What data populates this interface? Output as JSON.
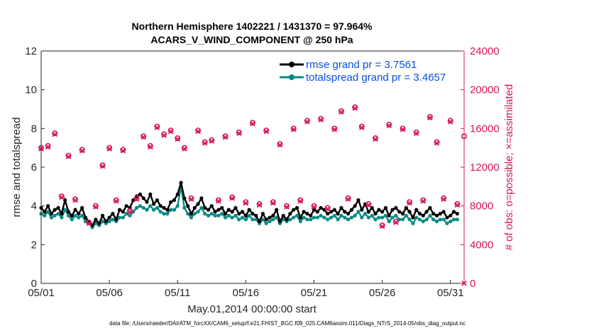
{
  "chart_data": {
    "type": "line",
    "title": "Northern Hemisphere 1402221 / 1431370 = 97.964%",
    "subtitle": "ACARS_V_WIND_COMPONENT @ 250 hPa",
    "xlabel": "May.01,2014 00:00:00 start",
    "ylabel": "rmse and totalspread",
    "ylabel_right": "# of obs: o=possible; ×=assimilated",
    "footnote": "data file: /Users/raeder/DAI/ATM_forcXX/CAM6_setup/f.e21.FHIST_BGC.f09_025.CAM6assim.011/Diags_NTrS_2014-05/obs_diag_output.nc",
    "x_ticks": [
      "05/01",
      "05/06",
      "05/11",
      "05/16",
      "05/21",
      "05/26",
      "05/31"
    ],
    "x_tick_days": [
      0,
      5,
      10,
      15,
      20,
      25,
      30
    ],
    "xlim": [
      0,
      31
    ],
    "ylim": [
      0,
      12
    ],
    "y_ticks": [
      "0",
      "2",
      "4",
      "6",
      "8",
      "10",
      "12"
    ],
    "ylim_right": [
      0,
      24000
    ],
    "y_ticks_right": [
      "0",
      "4000",
      "8000",
      "12000",
      "16000",
      "20000",
      "24000"
    ],
    "legend_position": "top-right",
    "colors": {
      "rmse": "#000000",
      "spread": "#0a8a86",
      "obs": "#d6145a",
      "legend_text": "#0a4ee6"
    },
    "series": [
      {
        "name": "rmse",
        "label": "rmse grand pr = 3.7561",
        "x": [
          0.0,
          0.25,
          0.5,
          0.75,
          1.0,
          1.25,
          1.5,
          1.75,
          2.0,
          2.25,
          2.5,
          2.75,
          3.0,
          3.25,
          3.5,
          3.75,
          4.0,
          4.25,
          4.5,
          4.75,
          5.0,
          5.25,
          5.5,
          5.75,
          6.0,
          6.25,
          6.5,
          6.75,
          7.0,
          7.25,
          7.5,
          7.75,
          8.0,
          8.25,
          8.5,
          8.75,
          9.0,
          9.25,
          9.5,
          9.75,
          10.0,
          10.25,
          10.5,
          10.75,
          11.0,
          11.25,
          11.5,
          11.75,
          12.0,
          12.25,
          12.5,
          12.75,
          13.0,
          13.25,
          13.5,
          13.75,
          14.0,
          14.25,
          14.5,
          14.75,
          15.0,
          15.25,
          15.5,
          15.75,
          16.0,
          16.25,
          16.5,
          16.75,
          17.0,
          17.25,
          17.5,
          17.75,
          18.0,
          18.25,
          18.5,
          18.75,
          19.0,
          19.25,
          19.5,
          19.75,
          20.0,
          20.25,
          20.5,
          20.75,
          21.0,
          21.25,
          21.5,
          21.75,
          22.0,
          22.25,
          22.5,
          22.75,
          23.0,
          23.25,
          23.5,
          23.75,
          24.0,
          24.25,
          24.5,
          24.75,
          25.0,
          25.25,
          25.5,
          25.75,
          26.0,
          26.25,
          26.5,
          26.75,
          27.0,
          27.25,
          27.5,
          27.75,
          28.0,
          28.25,
          28.5,
          28.75,
          29.0,
          29.25,
          29.5,
          29.75,
          30.0,
          30.25,
          30.5
        ],
        "values": [
          3.9,
          3.7,
          4.0,
          3.6,
          3.8,
          3.9,
          3.6,
          4.3,
          3.7,
          3.5,
          3.8,
          3.6,
          3.9,
          3.4,
          3.2,
          3.0,
          3.3,
          3.1,
          3.5,
          3.2,
          3.4,
          3.6,
          3.3,
          3.8,
          3.7,
          4.0,
          3.9,
          4.3,
          4.5,
          4.6,
          4.4,
          4.2,
          4.6,
          4.1,
          4.3,
          4.0,
          3.9,
          3.8,
          4.2,
          4.3,
          4.6,
          5.2,
          4.4,
          4.0,
          3.6,
          3.9,
          4.1,
          4.4,
          3.9,
          3.8,
          4.0,
          3.7,
          3.8,
          3.9,
          3.6,
          3.8,
          3.7,
          3.9,
          3.6,
          3.7,
          3.5,
          3.8,
          3.6,
          3.5,
          3.2,
          3.6,
          3.3,
          3.4,
          3.5,
          3.8,
          3.2,
          3.5,
          3.3,
          3.6,
          3.8,
          3.9,
          3.4,
          3.7,
          3.6,
          3.5,
          3.8,
          3.7,
          3.9,
          3.8,
          3.6,
          3.7,
          3.8,
          3.6,
          3.9,
          3.7,
          3.6,
          3.8,
          4.0,
          4.3,
          3.8,
          4.1,
          3.7,
          3.9,
          3.6,
          3.8,
          3.7,
          3.9,
          3.5,
          3.8,
          3.9,
          3.7,
          3.6,
          3.9,
          3.7,
          3.4,
          3.8,
          3.6,
          3.5,
          3.7,
          3.9,
          3.6,
          3.5,
          3.6,
          3.7,
          3.4,
          3.5,
          3.7,
          3.6
        ],
        "note": "values approximated from chart, 6-hourly"
      },
      {
        "name": "totalspread",
        "label": "totalspread grand pr = 3.4657",
        "values": [
          3.6,
          3.5,
          3.7,
          3.4,
          3.5,
          3.6,
          3.4,
          3.8,
          3.5,
          3.3,
          3.5,
          3.4,
          3.5,
          3.2,
          3.1,
          2.9,
          3.1,
          3.0,
          3.2,
          3.1,
          3.2,
          3.3,
          3.2,
          3.4,
          3.4,
          3.6,
          3.5,
          3.7,
          3.9,
          4.0,
          3.9,
          3.8,
          4.0,
          3.8,
          3.9,
          3.7,
          3.6,
          3.6,
          3.8,
          3.8,
          4.0,
          5.0,
          3.9,
          3.6,
          3.4,
          3.6,
          3.7,
          3.9,
          3.6,
          3.5,
          3.6,
          3.5,
          3.5,
          3.6,
          3.4,
          3.5,
          3.4,
          3.5,
          3.3,
          3.4,
          3.3,
          3.5,
          3.3,
          3.3,
          3.1,
          3.3,
          3.1,
          3.2,
          3.3,
          3.4,
          3.1,
          3.3,
          3.2,
          3.3,
          3.4,
          3.5,
          3.2,
          3.4,
          3.3,
          3.3,
          3.4,
          3.4,
          3.5,
          3.4,
          3.3,
          3.4,
          3.5,
          3.3,
          3.5,
          3.4,
          3.3,
          3.4,
          3.5,
          3.7,
          3.4,
          3.6,
          3.4,
          3.5,
          3.3,
          3.4,
          3.4,
          3.5,
          3.2,
          3.4,
          3.5,
          3.3,
          3.3,
          3.5,
          3.3,
          3.1,
          3.4,
          3.3,
          3.2,
          3.3,
          3.5,
          3.3,
          3.2,
          3.3,
          3.3,
          3.1,
          3.2,
          3.3,
          3.3
        ],
        "note": "values approximated from chart, 6-hourly"
      },
      {
        "name": "obs_possible",
        "axis": "right",
        "marker": "circle",
        "x": [
          0,
          0.5,
          1,
          1.5,
          2,
          2.5,
          3,
          3.5,
          4,
          4.5,
          5,
          5.5,
          6,
          6.5,
          7,
          7.5,
          8,
          8.5,
          9,
          9.5,
          10,
          10.5,
          11,
          11.5,
          12,
          12.5,
          13,
          13.5,
          14,
          14.5,
          15,
          15.5,
          16,
          16.5,
          17,
          17.5,
          18,
          18.5,
          19,
          19.5,
          20,
          20.5,
          21,
          21.5,
          22,
          22.5,
          23,
          23.5,
          24,
          24.5,
          25,
          25.5,
          26,
          26.5,
          27,
          27.5,
          28,
          28.5,
          29,
          29.5,
          30,
          30.5,
          31
        ],
        "values": [
          14000,
          14200,
          15500,
          9000,
          13200,
          8700,
          13800,
          6300,
          8000,
          12200,
          14000,
          8600,
          13800,
          7500,
          8800,
          15200,
          14200,
          16200,
          15400,
          15800,
          15000,
          14000,
          8800,
          15800,
          14600,
          14800,
          8600,
          15200,
          8900,
          15600,
          8400,
          16600,
          8200,
          15800,
          8400,
          14400,
          8000,
          16000,
          8600,
          16800,
          8000,
          17000,
          7800,
          16000,
          17800,
          8800,
          18200,
          16200,
          8200,
          15000,
          6000,
          16400,
          6400,
          16000,
          8400,
          15600,
          8600,
          17200,
          14600,
          8800,
          16800,
          8200,
          15200
        ],
        "note": "observation counts approximated from chart"
      },
      {
        "name": "obs_assimilated",
        "axis": "right",
        "marker": "x",
        "values": [
          13900,
          14100,
          15400,
          8900,
          13100,
          8600,
          13700,
          6200,
          7900,
          12100,
          13900,
          8500,
          13700,
          7400,
          8700,
          15100,
          14100,
          16100,
          15300,
          15700,
          14900,
          13900,
          8700,
          15700,
          14500,
          14700,
          8500,
          15100,
          8800,
          15500,
          8300,
          16500,
          8100,
          15700,
          8300,
          14300,
          7900,
          15900,
          8500,
          16700,
          7900,
          16900,
          7700,
          15900,
          17700,
          8700,
          18100,
          16100,
          8100,
          14900,
          5900,
          16300,
          6300,
          15900,
          8300,
          15500,
          8500,
          17100,
          14500,
          8700,
          16700,
          8100,
          0
        ],
        "note": "assimilated counts approximated from chart"
      }
    ]
  }
}
